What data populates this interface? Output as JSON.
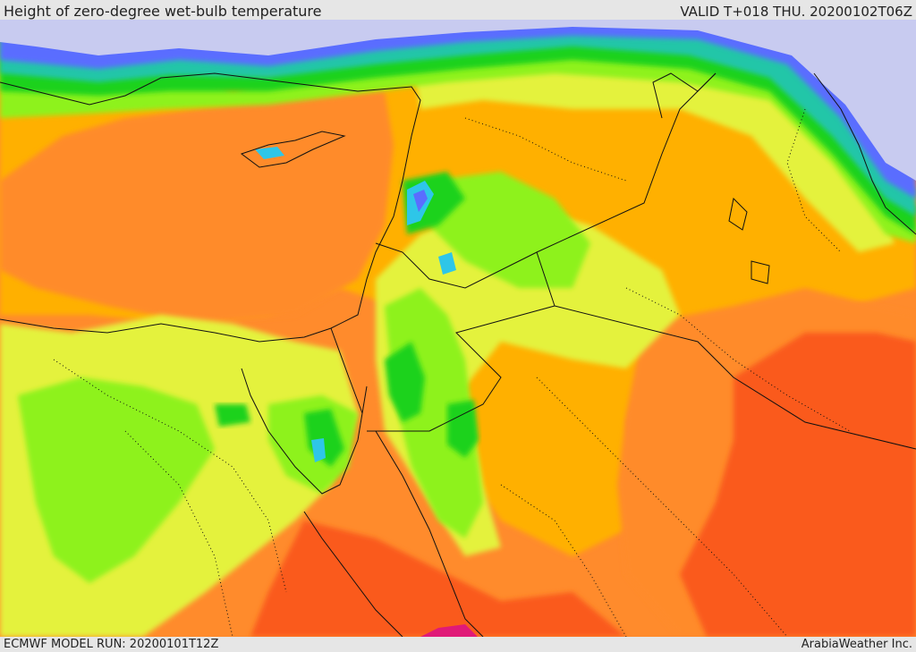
{
  "header": {
    "title": "Height of zero-degree wet-bulb temperature",
    "valid_time": "VALID T+018 THU. 20200102T06Z"
  },
  "footer": {
    "model_run": "ECMWF MODEL RUN: 20200101T12Z",
    "credit": "ArabiaWeather Inc."
  },
  "map": {
    "palette": {
      "snow_level": "#c8cbf0",
      "blue": "#5a6dff",
      "cyan": "#2ec6e8",
      "teal": "#22c6a8",
      "green": "#1fd21f",
      "lime": "#8ef21a",
      "yellow": "#e4f23c",
      "amber": "#ffb000",
      "orange": "#ff8b2c",
      "red_orange": "#fa5a1a",
      "magenta": "#e01a78",
      "borders": "#111111"
    }
  }
}
